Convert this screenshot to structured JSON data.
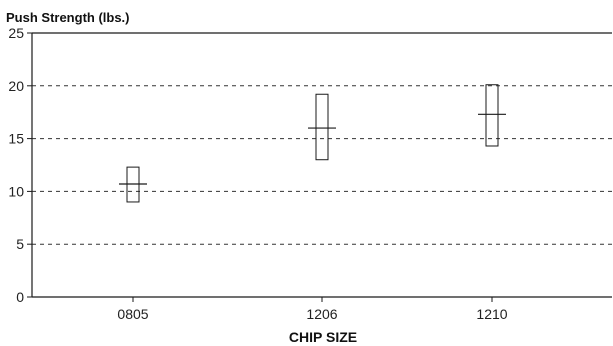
{
  "chart_data": {
    "type": "box",
    "ylabel": "Push Strength (lbs.)",
    "xlabel": "CHIP SIZE",
    "categories": [
      "0805",
      "1206",
      "1210"
    ],
    "series": [
      {
        "boxes": [
          {
            "low": 9.0,
            "high": 12.3,
            "mean": 10.7
          },
          {
            "low": 13.0,
            "high": 19.2,
            "mean": 16.0
          },
          {
            "low": 14.3,
            "high": 20.1,
            "mean": 17.3
          }
        ]
      }
    ],
    "ylim": [
      0,
      25
    ],
    "yticks": [
      "0",
      "5",
      "10",
      "15",
      "20",
      "25"
    ],
    "grid": "dashed horizontal",
    "colors": {
      "line": "#1a1a1a",
      "grid": "#333333"
    }
  }
}
